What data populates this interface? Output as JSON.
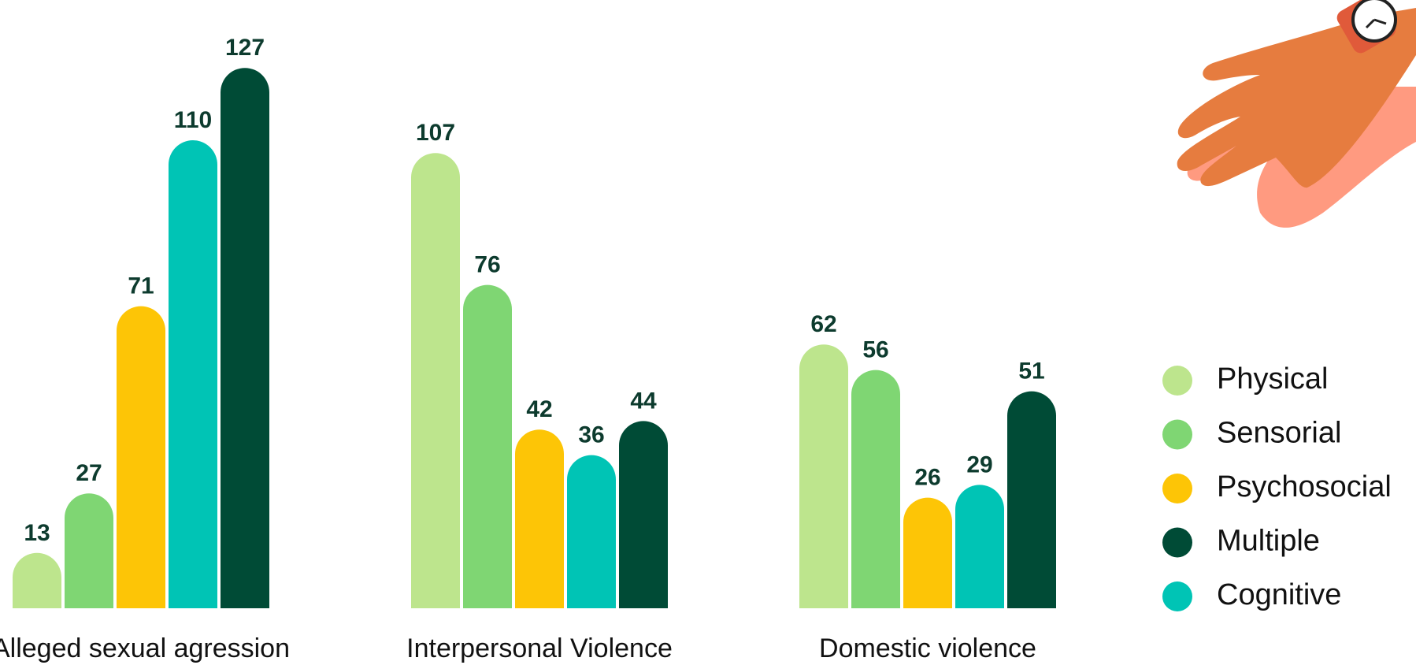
{
  "chart_data": {
    "type": "bar",
    "categories": [
      "Alleged sexual agression",
      "Interpersonal Violence",
      "Domestic violence"
    ],
    "series": [
      {
        "name": "Physical",
        "color": "#bde58d",
        "values": [
          13,
          107,
          62
        ]
      },
      {
        "name": "Sensorial",
        "color": "#7fd673",
        "values": [
          27,
          76,
          56
        ]
      },
      {
        "name": "Psychosocial",
        "color": "#fdc506",
        "values": [
          71,
          42,
          26
        ]
      },
      {
        "name": "Multiple",
        "color": "#004b36",
        "values": [
          127,
          44,
          51
        ]
      },
      {
        "name": "Cognitive",
        "color": "#00c4b5",
        "values": [
          110,
          36,
          29
        ]
      }
    ]
  }
}
